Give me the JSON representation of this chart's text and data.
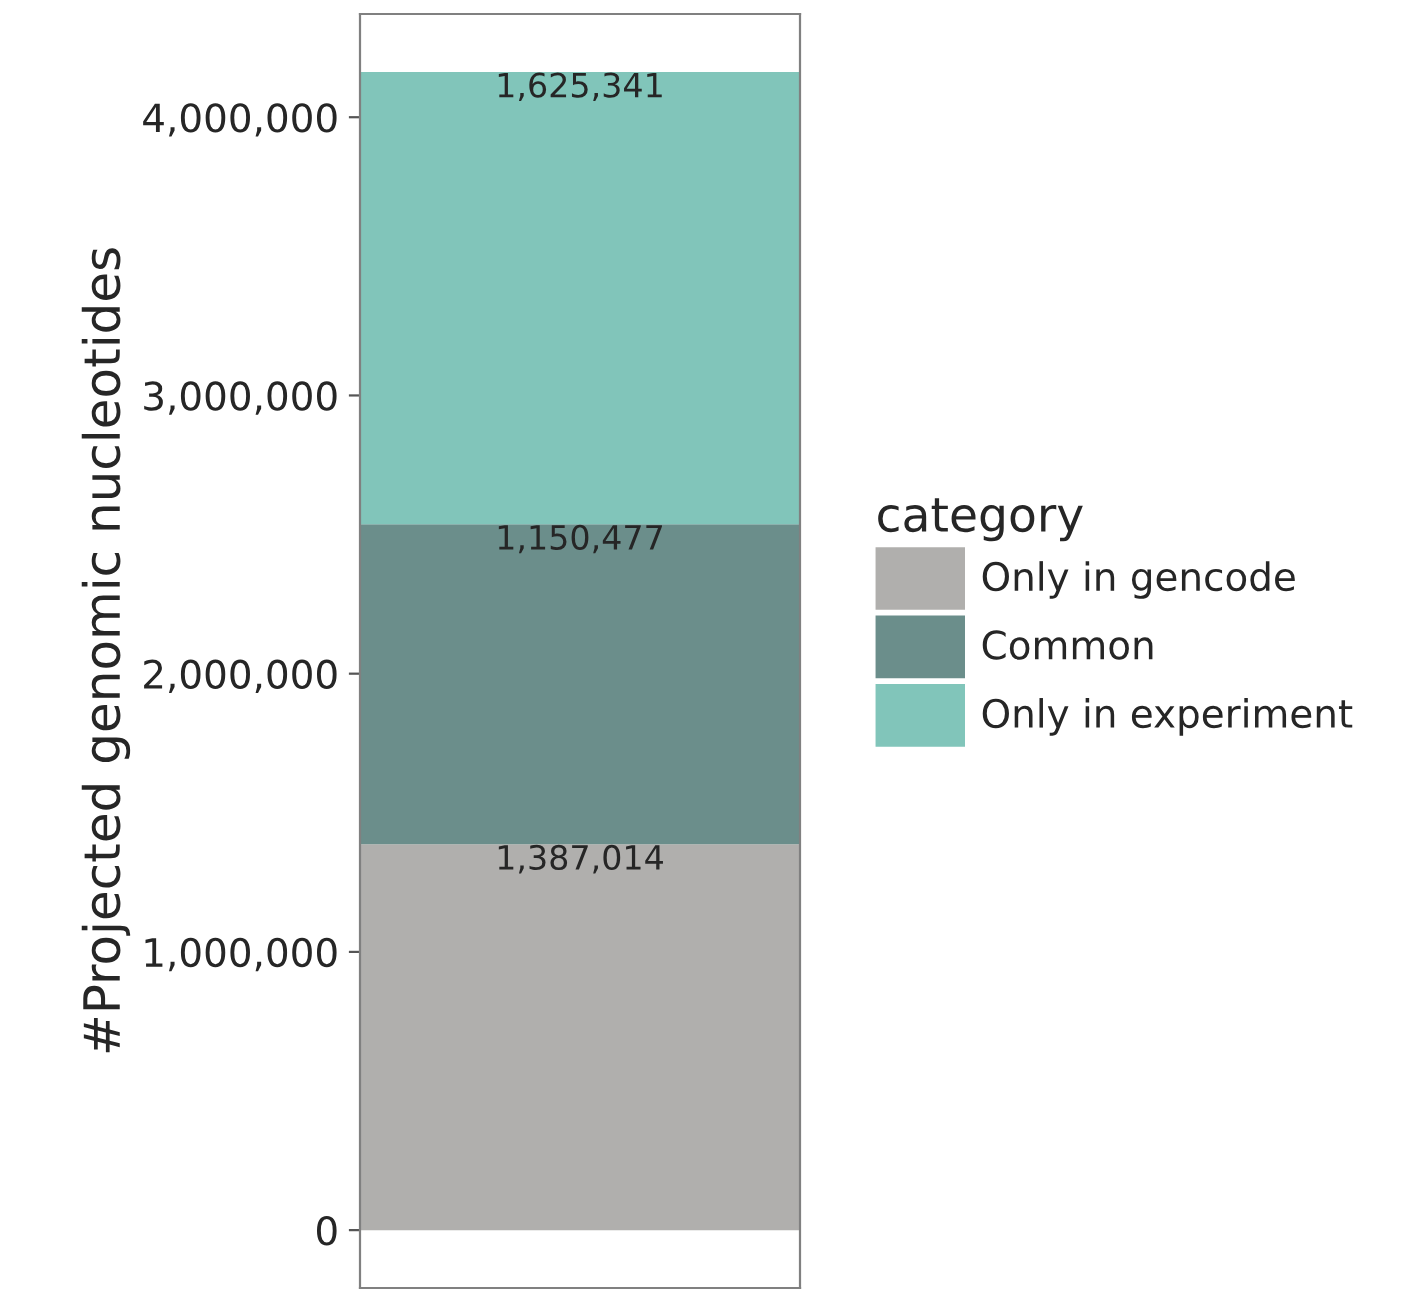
{
  "chart_data": {
    "type": "bar",
    "stacked": true,
    "categories": [
      null
    ],
    "ylabel": "#Projected genomic nucleotides",
    "legend_title": "category",
    "legend": "right",
    "ylim": [
      -208000,
      4371000
    ],
    "yticks": [
      {
        "value": 0,
        "label": "0"
      },
      {
        "value": 1000000,
        "label": "1,000,000"
      },
      {
        "value": 2000000,
        "label": "2,000,000"
      },
      {
        "value": 3000000,
        "label": "3,000,000"
      },
      {
        "value": 4000000,
        "label": "4,000,000"
      }
    ],
    "series": [
      {
        "name": "Only in gencode",
        "color": "#b0afad",
        "values": [
          1387014
        ],
        "value_labels": [
          "1,387,014"
        ]
      },
      {
        "name": "Common",
        "color": "#6b8e8b",
        "values": [
          1150477
        ],
        "value_labels": [
          "1,150,477"
        ]
      },
      {
        "name": "Only in experiment",
        "color": "#81c5ba",
        "values": [
          1625341
        ],
        "value_labels": [
          "1,625,341"
        ]
      }
    ]
  }
}
